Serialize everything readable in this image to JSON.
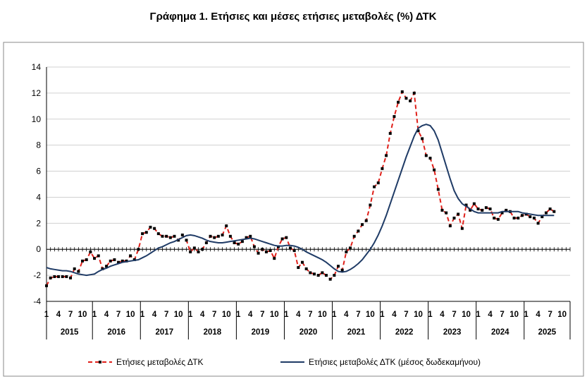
{
  "chart_data": {
    "type": "line",
    "title": "Γράφημα 1. Ετήσιες και μέσες ετήσιες μεταβολές (%) ΔΤΚ",
    "xlabel": "",
    "ylabel": "",
    "ylim": [
      -4,
      14
    ],
    "yticks": [
      -4,
      -2,
      0,
      2,
      4,
      6,
      8,
      10,
      12,
      14
    ],
    "grid": true,
    "legend": "bottom",
    "start": "2015-01",
    "month_ticks": [
      "1",
      "4",
      "7",
      "10"
    ],
    "years": [
      "2015",
      "2016",
      "2017",
      "2018",
      "2019",
      "2020",
      "2021",
      "2022",
      "2023",
      "2024",
      "2025"
    ],
    "series": [
      {
        "name": "Ετήσιες μεταβολές ΔΤΚ",
        "color": "#e0201a",
        "style": "dashed-markers",
        "values": [
          -2.8,
          -2.2,
          -2.1,
          -2.1,
          -2.1,
          -2.1,
          -2.2,
          -1.5,
          -1.7,
          -0.9,
          -0.8,
          -0.2,
          -0.7,
          -0.5,
          -1.5,
          -1.3,
          -0.9,
          -0.8,
          -1.0,
          -0.9,
          -0.9,
          -0.5,
          -0.8,
          0.0,
          1.2,
          1.3,
          1.7,
          1.6,
          1.2,
          1.0,
          1.0,
          0.9,
          1.0,
          0.7,
          1.1,
          0.7,
          -0.2,
          0.1,
          -0.2,
          0.0,
          0.5,
          1.0,
          0.9,
          1.0,
          1.1,
          1.8,
          1.0,
          0.5,
          0.4,
          0.6,
          0.9,
          1.0,
          0.2,
          -0.3,
          0.0,
          -0.2,
          -0.1,
          -0.7,
          0.2,
          0.8,
          0.9,
          0.1,
          -0.1,
          -1.4,
          -1.0,
          -1.5,
          -1.8,
          -1.9,
          -2.0,
          -1.8,
          -2.0,
          -2.3,
          -2.0,
          -1.3,
          -1.6,
          -0.2,
          0.1,
          1.0,
          1.4,
          1.9,
          2.2,
          3.4,
          4.8,
          5.1,
          6.2,
          7.2,
          8.9,
          10.2,
          11.3,
          12.1,
          11.6,
          11.4,
          12.0,
          9.1,
          8.5,
          7.2,
          7.0,
          6.1,
          4.6,
          3.0,
          2.8,
          1.8,
          2.4,
          2.7,
          1.6,
          3.4,
          3.0,
          3.5,
          3.1,
          3.0,
          3.2,
          3.1,
          2.4,
          2.3,
          2.8,
          3.0,
          2.9,
          2.4,
          2.4,
          2.6,
          2.7,
          2.5,
          2.4,
          2.0,
          2.5,
          2.8,
          3.1,
          2.9
        ]
      },
      {
        "name": "Ετήσιες μεταβολές ΔΤΚ (μέσος δωδεκαμήνου)",
        "color": "#1f3b66",
        "style": "solid",
        "values": [
          -1.4,
          -1.5,
          -1.55,
          -1.6,
          -1.65,
          -1.65,
          -1.7,
          -1.8,
          -1.9,
          -1.95,
          -2.0,
          -1.95,
          -1.9,
          -1.7,
          -1.55,
          -1.45,
          -1.3,
          -1.2,
          -1.1,
          -1.0,
          -0.95,
          -0.9,
          -0.85,
          -0.8,
          -0.65,
          -0.5,
          -0.3,
          -0.1,
          0.1,
          0.2,
          0.35,
          0.5,
          0.6,
          0.75,
          0.9,
          1.05,
          1.1,
          1.05,
          0.95,
          0.85,
          0.7,
          0.6,
          0.55,
          0.5,
          0.5,
          0.55,
          0.6,
          0.65,
          0.7,
          0.75,
          0.8,
          0.85,
          0.8,
          0.7,
          0.6,
          0.5,
          0.4,
          0.3,
          0.25,
          0.25,
          0.3,
          0.3,
          0.25,
          0.15,
          0.0,
          -0.2,
          -0.35,
          -0.5,
          -0.65,
          -0.8,
          -1.0,
          -1.25,
          -1.5,
          -1.7,
          -1.75,
          -1.7,
          -1.55,
          -1.35,
          -1.1,
          -0.8,
          -0.4,
          0.0,
          0.5,
          1.1,
          1.8,
          2.6,
          3.5,
          4.4,
          5.3,
          6.2,
          7.1,
          7.9,
          8.7,
          9.3,
          9.5,
          9.6,
          9.5,
          9.1,
          8.4,
          7.4,
          6.4,
          5.4,
          4.5,
          3.9,
          3.5,
          3.3,
          3.1,
          2.9,
          2.8,
          2.8,
          2.8,
          2.8,
          2.8,
          2.8,
          2.9,
          2.9,
          2.9,
          2.9,
          2.9,
          2.8,
          2.75,
          2.7,
          2.65,
          2.6,
          2.6,
          2.6,
          2.6,
          2.6
        ]
      }
    ]
  }
}
